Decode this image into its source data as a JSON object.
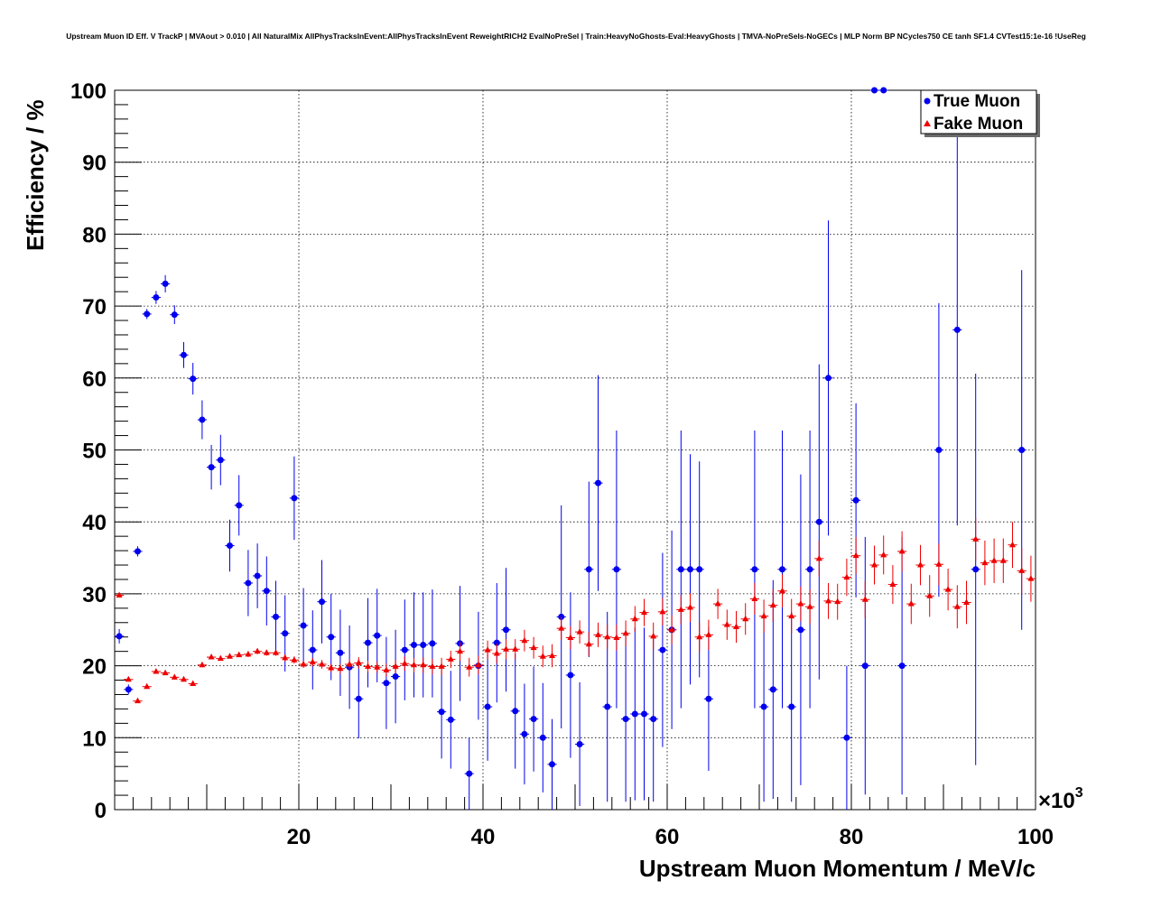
{
  "chart_data": {
    "type": "scatter",
    "title": "Upstream Muon ID Eff. V TrackP | MVAout > 0.010 | All NaturalMix AllPhysTracksInEvent:AllPhysTracksInEvent ReweightRICH2 EvalNoPreSel | Train:HeavyNoGhosts-Eval:HeavyGhosts | TMVA-NoPreSels-NoGECs | MLP Norm BP NCycles750 CE tanh SF1.4 CVTest15:1e-16 !UseReg",
    "xlabel": "Upstream Muon Momentum / MeV/c",
    "ylabel": "Efficiency / %",
    "x_multiplier_label": "×10",
    "x_multiplier_exp": "3",
    "xlim": [
      0,
      100
    ],
    "ylim": [
      0,
      100
    ],
    "x_ticks": [
      20,
      40,
      60,
      80,
      100
    ],
    "y_ticks": [
      0,
      10,
      20,
      30,
      40,
      50,
      60,
      70,
      80,
      90,
      100
    ],
    "grid": true,
    "legend_position": "top-right",
    "series": [
      {
        "name": "True Muon",
        "color": "#0000ee",
        "marker": "circle",
        "points": [
          [
            0.5,
            24.1,
            1
          ],
          [
            1.5,
            16.7,
            0.7
          ],
          [
            2.5,
            35.9,
            0.7
          ],
          [
            3.5,
            68.9,
            0.7
          ],
          [
            4.5,
            71.2,
            0.9
          ],
          [
            5.5,
            73.1,
            1.2
          ],
          [
            6.5,
            68.8,
            1.3
          ],
          [
            7.5,
            63.2,
            1.8
          ],
          [
            8.5,
            59.9,
            2.2
          ],
          [
            9.5,
            54.2,
            2.7
          ],
          [
            10.5,
            47.6,
            3.1
          ],
          [
            11.5,
            48.6,
            3.5
          ],
          [
            12.5,
            36.7,
            3.6
          ],
          [
            13.5,
            42.3,
            4.2
          ],
          [
            14.5,
            31.5,
            4.6
          ],
          [
            15.5,
            32.5,
            4.5
          ],
          [
            16.5,
            30.4,
            4.8
          ],
          [
            17.5,
            26.8,
            5
          ],
          [
            18.5,
            24.5,
            5.3
          ],
          [
            19.5,
            43.3,
            5.8
          ],
          [
            20.5,
            25.6,
            5.2
          ],
          [
            21.5,
            22.2,
            5.5
          ],
          [
            22.5,
            28.9,
            5.8
          ],
          [
            23.5,
            24,
            6
          ],
          [
            24.5,
            21.8,
            6
          ],
          [
            25.5,
            19.8,
            5.8
          ],
          [
            26.5,
            15.4,
            5.5
          ],
          [
            27.5,
            23.2,
            6.2
          ],
          [
            28.5,
            24.2,
            6.5
          ],
          [
            29.5,
            17.6,
            6.4
          ],
          [
            30.5,
            18.5,
            6.5
          ],
          [
            31.5,
            22.2,
            7
          ],
          [
            32.5,
            22.9,
            7.3
          ],
          [
            33.5,
            22.9,
            7.3
          ],
          [
            34.5,
            23.1,
            7.5
          ],
          [
            35.5,
            13.6,
            6.5
          ],
          [
            36.5,
            12.5,
            6.8
          ],
          [
            37.5,
            23.1,
            8
          ],
          [
            38.5,
            5,
            5
          ],
          [
            39.5,
            20,
            7.5
          ],
          [
            40.5,
            14.3,
            7.5
          ],
          [
            41.5,
            23.2,
            8.3
          ],
          [
            42.5,
            25,
            8.6
          ],
          [
            43.5,
            13.7,
            8
          ],
          [
            44.5,
            10.5,
            7
          ],
          [
            45.5,
            12.6,
            7.3
          ],
          [
            46.5,
            10,
            7.6
          ],
          [
            47.5,
            6.3,
            6.3
          ],
          [
            48.5,
            26.8,
            15.5
          ],
          [
            49.5,
            18.7,
            11.5
          ],
          [
            50.5,
            9.1,
            8.6
          ],
          [
            51.5,
            33.4,
            12.2
          ],
          [
            52.5,
            45.4,
            15
          ],
          [
            53.5,
            14.3,
            13.2
          ],
          [
            54.5,
            33.4,
            19.3
          ],
          [
            55.5,
            12.6,
            11.5
          ],
          [
            56.5,
            13.3,
            12
          ],
          [
            57.5,
            13.3,
            12
          ],
          [
            58.5,
            12.6,
            11.5
          ],
          [
            59.5,
            22.2,
            13.5
          ],
          [
            60.5,
            25,
            13.8
          ],
          [
            61.5,
            33.4,
            19.3
          ],
          [
            62.5,
            33.4,
            16
          ],
          [
            63.5,
            33.4,
            15
          ],
          [
            64.5,
            15.4,
            10
          ],
          [
            69.5,
            33.4,
            19.3
          ],
          [
            70.5,
            14.3,
            13.2
          ],
          [
            71.5,
            16.7,
            15.2
          ],
          [
            72.5,
            33.4,
            19.3
          ],
          [
            73.5,
            14.3,
            13.2
          ],
          [
            74.5,
            25,
            21.6
          ],
          [
            75.5,
            33.4,
            19.3
          ],
          [
            76.5,
            40,
            21.9
          ],
          [
            77.5,
            60,
            21.9
          ],
          [
            79.5,
            10,
            10
          ],
          [
            80.5,
            43,
            13.5
          ],
          [
            81.5,
            20,
            17.9
          ],
          [
            82.5,
            100,
            0
          ],
          [
            83.5,
            100,
            0
          ],
          [
            85.5,
            20,
            17.9
          ],
          [
            89.5,
            50,
            20.4
          ],
          [
            91.5,
            66.7,
            27.2
          ],
          [
            93.5,
            33.4,
            27.2
          ],
          [
            98.5,
            50,
            25
          ]
        ]
      },
      {
        "name": "Fake Muon",
        "color": "#ee0000",
        "marker": "triangle",
        "points": [
          [
            0.5,
            29.8,
            0.3
          ],
          [
            1.5,
            18.1,
            0.3
          ],
          [
            2.5,
            15.1,
            0.3
          ],
          [
            3.5,
            17.1,
            0.3
          ],
          [
            4.5,
            19.2,
            0.3
          ],
          [
            5.5,
            19,
            0.3
          ],
          [
            6.5,
            18.4,
            0.3
          ],
          [
            7.5,
            18.1,
            0.3
          ],
          [
            8.5,
            17.5,
            0.3
          ],
          [
            9.5,
            20.1,
            0.3
          ],
          [
            10.5,
            21.2,
            0.3
          ],
          [
            11.5,
            21,
            0.3
          ],
          [
            12.5,
            21.3,
            0.3
          ],
          [
            13.5,
            21.5,
            0.3
          ],
          [
            14.5,
            21.6,
            0.4
          ],
          [
            15.5,
            22,
            0.4
          ],
          [
            16.5,
            21.8,
            0.4
          ],
          [
            17.5,
            21.8,
            0.4
          ],
          [
            18.5,
            21.1,
            0.5
          ],
          [
            19.5,
            20.8,
            0.5
          ],
          [
            20.5,
            20.2,
            0.5
          ],
          [
            21.5,
            20.5,
            0.6
          ],
          [
            22.5,
            20.2,
            0.6
          ],
          [
            23.5,
            19.7,
            0.6
          ],
          [
            24.5,
            19.6,
            0.7
          ],
          [
            25.5,
            20.2,
            0.7
          ],
          [
            26.5,
            20.4,
            0.8
          ],
          [
            27.5,
            19.9,
            0.8
          ],
          [
            28.5,
            19.8,
            0.8
          ],
          [
            29.5,
            19.4,
            0.9
          ],
          [
            30.5,
            19.9,
            0.9
          ],
          [
            31.5,
            20.3,
            1
          ],
          [
            32.5,
            20.1,
            1
          ],
          [
            33.5,
            20.1,
            1.1
          ],
          [
            34.5,
            19.9,
            1.1
          ],
          [
            35.5,
            19.9,
            1.2
          ],
          [
            36.5,
            20.9,
            1.2
          ],
          [
            37.5,
            22,
            1.3
          ],
          [
            38.5,
            19.8,
            1.3
          ],
          [
            39.5,
            20.1,
            1.3
          ],
          [
            40.5,
            22.2,
            1.3
          ],
          [
            41.5,
            21.7,
            1.4
          ],
          [
            42.5,
            22.3,
            1.4
          ],
          [
            43.5,
            22.3,
            1.4
          ],
          [
            44.5,
            23.5,
            1.5
          ],
          [
            45.5,
            22.5,
            1.5
          ],
          [
            46.5,
            21.3,
            1.5
          ],
          [
            47.5,
            21.4,
            1.6
          ],
          [
            48.5,
            25.2,
            1.6
          ],
          [
            49.5,
            23.9,
            1.6
          ],
          [
            50.5,
            24.7,
            1.6
          ],
          [
            51.5,
            23,
            1.7
          ],
          [
            52.5,
            24.3,
            1.7
          ],
          [
            53.5,
            24,
            1.7
          ],
          [
            54.5,
            23.9,
            1.8
          ],
          [
            55.5,
            24.5,
            1.8
          ],
          [
            56.5,
            26.5,
            1.8
          ],
          [
            57.5,
            27.4,
            1.9
          ],
          [
            58.5,
            24.1,
            1.9
          ],
          [
            59.5,
            27.5,
            1.9
          ],
          [
            60.5,
            25,
            2
          ],
          [
            61.5,
            27.8,
            2
          ],
          [
            62.5,
            28.1,
            2
          ],
          [
            63.5,
            24,
            2
          ],
          [
            64.5,
            24.3,
            2.1
          ],
          [
            65.5,
            28.6,
            2.1
          ],
          [
            66.5,
            25.7,
            2.1
          ],
          [
            67.5,
            25.4,
            2.2
          ],
          [
            68.5,
            26.5,
            2.2
          ],
          [
            69.5,
            29.3,
            2.2
          ],
          [
            70.5,
            26.9,
            2.3
          ],
          [
            71.5,
            28.4,
            2.3
          ],
          [
            72.5,
            30.4,
            2.3
          ],
          [
            73.5,
            26.9,
            2.4
          ],
          [
            74.5,
            28.6,
            2.4
          ],
          [
            75.5,
            28.2,
            2.4
          ],
          [
            76.5,
            34.9,
            2.5
          ],
          [
            77.5,
            29,
            2.5
          ],
          [
            78.5,
            28.9,
            2.5
          ],
          [
            79.5,
            32.3,
            2.6
          ],
          [
            80.5,
            35.3,
            2.6
          ],
          [
            81.5,
            29.2,
            2.6
          ],
          [
            82.5,
            34,
            2.7
          ],
          [
            83.5,
            35.4,
            2.7
          ],
          [
            84.5,
            31.3,
            2.7
          ],
          [
            85.5,
            35.9,
            2.8
          ],
          [
            86.5,
            28.6,
            2.8
          ],
          [
            87.5,
            34,
            2.8
          ],
          [
            88.5,
            29.7,
            2.9
          ],
          [
            89.5,
            34.1,
            2.9
          ],
          [
            90.5,
            30.6,
            2.9
          ],
          [
            91.5,
            28.2,
            3
          ],
          [
            92.5,
            28.8,
            3
          ],
          [
            93.5,
            37.6,
            3
          ],
          [
            94.5,
            34.3,
            3.1
          ],
          [
            95.5,
            34.6,
            3.1
          ],
          [
            96.5,
            34.6,
            3.1
          ],
          [
            97.5,
            36.8,
            3.2
          ],
          [
            98.5,
            33.2,
            3.2
          ],
          [
            99.5,
            32.1,
            3.2
          ]
        ]
      }
    ]
  }
}
